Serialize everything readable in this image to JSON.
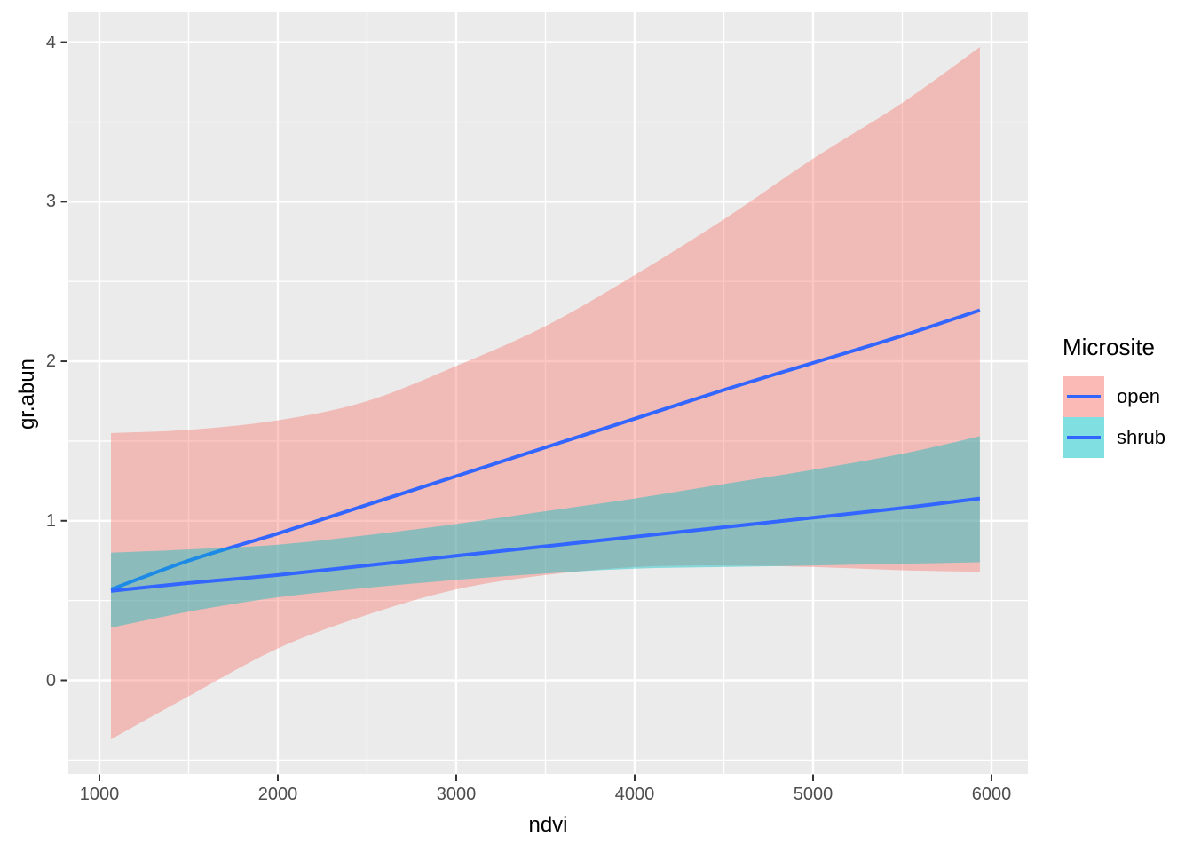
{
  "figure": {
    "background": "#ffffff",
    "panel_background": "#ebebeb",
    "grid_major_color": "#ffffff",
    "grid_minor_color": "#ffffff",
    "tick_mark_color": "#333333",
    "tick_label_color": "#4d4d4d",
    "axis_title_color": "#000000"
  },
  "chart_data": {
    "type": "line",
    "title": "",
    "xlabel": "ndvi",
    "ylabel": "gr.abun",
    "grid": "on",
    "legend_position": "right",
    "x_domain": [
      826,
      6204
    ],
    "y_domain": [
      -0.587,
      4.187
    ],
    "x_ticks": [
      1000,
      2000,
      3000,
      4000,
      5000,
      6000
    ],
    "x_minor_ticks": [
      1500,
      2500,
      3500,
      4500,
      5500
    ],
    "y_ticks": [
      0,
      1,
      2,
      3,
      4
    ],
    "y_minor_ticks": [
      -0.5,
      0.5,
      1.5,
      2.5,
      3.5
    ],
    "x": [
      1065,
      1500,
      2000,
      2500,
      3000,
      3500,
      4000,
      4500,
      5000,
      5500,
      5935
    ],
    "groups": [
      {
        "name": "open",
        "fill": "#F8766D",
        "fill_alpha": 0.42,
        "line_color": "#3366FF",
        "line_width": 4,
        "fit": [
          0.57,
          0.75,
          0.92,
          1.1,
          1.28,
          1.46,
          1.64,
          1.82,
          1.99,
          2.16,
          2.32
        ],
        "ci_upper": [
          1.55,
          1.57,
          1.63,
          1.75,
          1.97,
          2.22,
          2.54,
          2.89,
          3.27,
          3.62,
          3.97
        ],
        "ci_lower": [
          -0.37,
          -0.1,
          0.2,
          0.41,
          0.57,
          0.66,
          0.71,
          0.72,
          0.71,
          0.69,
          0.68
        ]
      },
      {
        "name": "shrub",
        "fill": "#00BFC4",
        "fill_alpha": 0.42,
        "line_color": "#3366FF",
        "line_width": 4,
        "fit": [
          0.56,
          0.61,
          0.66,
          0.72,
          0.78,
          0.84,
          0.9,
          0.96,
          1.02,
          1.08,
          1.14
        ],
        "ci_upper": [
          0.8,
          0.82,
          0.85,
          0.91,
          0.98,
          1.06,
          1.14,
          1.23,
          1.32,
          1.42,
          1.53
        ],
        "ci_lower": [
          0.33,
          0.43,
          0.52,
          0.58,
          0.63,
          0.67,
          0.7,
          0.71,
          0.72,
          0.73,
          0.74
        ]
      }
    ]
  },
  "legend": {
    "title": "Microsite",
    "key_swatch_alpha": 0.5,
    "items": [
      {
        "label": "open",
        "fill": "#F8766D",
        "line_color": "#3366FF"
      },
      {
        "label": "shrub",
        "fill": "#00BFC4",
        "line_color": "#3366FF"
      }
    ]
  }
}
